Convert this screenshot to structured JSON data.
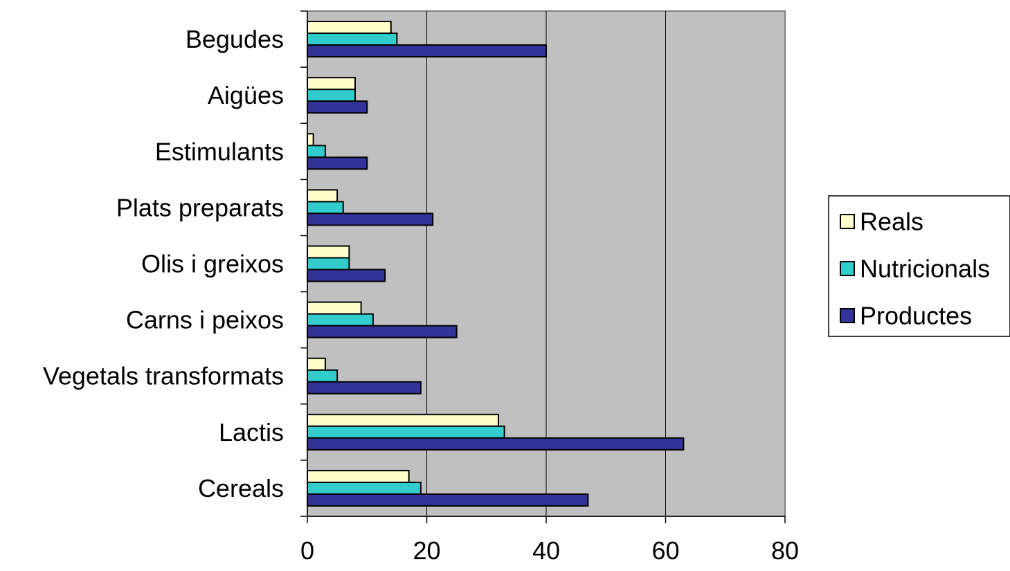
{
  "chart_data": {
    "type": "bar",
    "orientation": "horizontal",
    "categories": [
      "Cereals",
      "Lactis",
      "Vegetals transformats",
      "Carns i peixos",
      "Olis i greixos",
      "Plats preparats",
      "Estimulants",
      "Aigües",
      "Begudes"
    ],
    "series": [
      {
        "name": "Reals",
        "color": "#ffffcc",
        "values": [
          17,
          32,
          3,
          9,
          7,
          5,
          1,
          8,
          14
        ]
      },
      {
        "name": "Nutricionals",
        "color": "#33cccc",
        "values": [
          19,
          33,
          5,
          11,
          7,
          6,
          3,
          8,
          15
        ]
      },
      {
        "name": "Productes",
        "color": "#333399",
        "values": [
          47,
          63,
          19,
          25,
          13,
          21,
          10,
          10,
          40
        ]
      }
    ],
    "x_ticks": [
      "0",
      "20",
      "40",
      "60",
      "80"
    ],
    "xlim": [
      0,
      80
    ],
    "plot_background": "#c0c0c0",
    "grid": true,
    "legend_position": "right"
  }
}
